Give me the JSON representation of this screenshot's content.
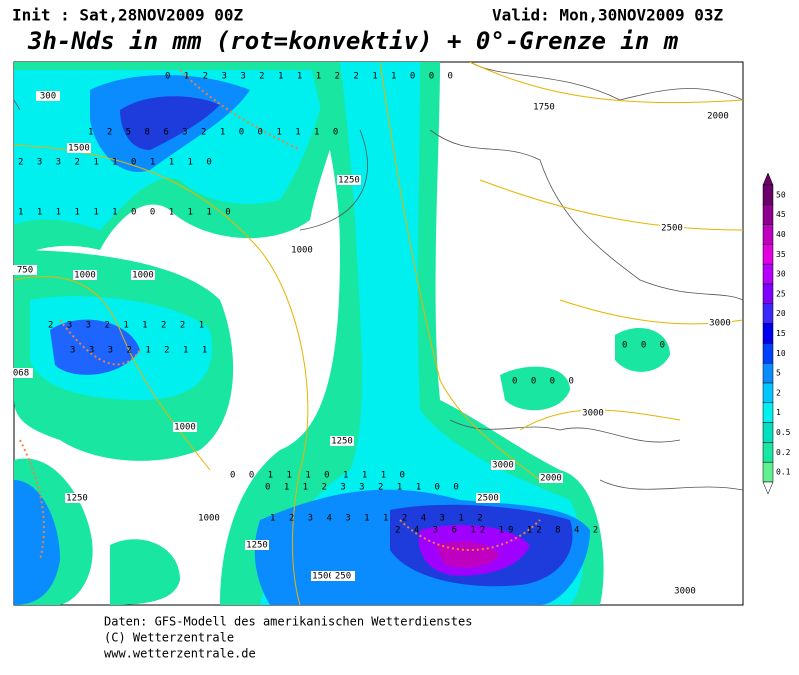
{
  "header": {
    "init": "Init : Sat,28NOV2009 00Z",
    "valid": "Valid: Mon,30NOV2009 03Z",
    "title": "3h-Nds in mm (rot=konvektiv) + 0°-Grenze in m"
  },
  "contour_labels": [
    "300",
    "1500",
    "1750",
    "2000",
    "1250",
    "1000",
    "2500",
    "750",
    "1000",
    "1000",
    "3000",
    "068",
    "3000",
    "1000",
    "1250",
    "3000",
    "2000",
    "2500",
    "1250",
    "1000",
    "1250",
    "1500",
    "250",
    "3000"
  ],
  "grid_rows": [
    "0 1 2 3 3 2 1 1 1 2 2 1 1 0 0 0",
    "1 2 5 8 6 3 2 1 0 0 1 1 1 0",
    "2 3 3 2 1 1 0 1 1 1 0",
    "1 1 1 1 1 1 0 0 1 1 1 0",
    "2 3 3 2 1 1 2 2 1",
    "3 3 3 2 1 2 1 1",
    "0 0 1 1 1 0 1 1 1 0",
    "0 1 1 2 3 3 2 1 1 0 0",
    "1 2 3 4 3 1 1 2 4 3 1 2",
    "2 4 3 6 12 19 12 8 4 2",
    "0 0 0 0",
    "0 0 0"
  ],
  "legend": {
    "labels": [
      "50",
      "45",
      "40",
      "35",
      "30",
      "25",
      "20",
      "15",
      "10",
      "5",
      "2",
      "1",
      "0.5",
      "0.2",
      "0.1"
    ],
    "colors": [
      "#6a006a",
      "#900090",
      "#c000c0",
      "#e000e0",
      "#b400ff",
      "#8000ff",
      "#3c28ff",
      "#0000f0",
      "#0040ff",
      "#0a8cff",
      "#00c8ff",
      "#00f0f0",
      "#00e0c0",
      "#19e6a0",
      "#60f090"
    ]
  },
  "footer": [
    "Daten: GFS-Modell des amerikanischen Wetterdienstes",
    "(C) Wetterzentrale",
    "www.wetterzentrale.de"
  ]
}
